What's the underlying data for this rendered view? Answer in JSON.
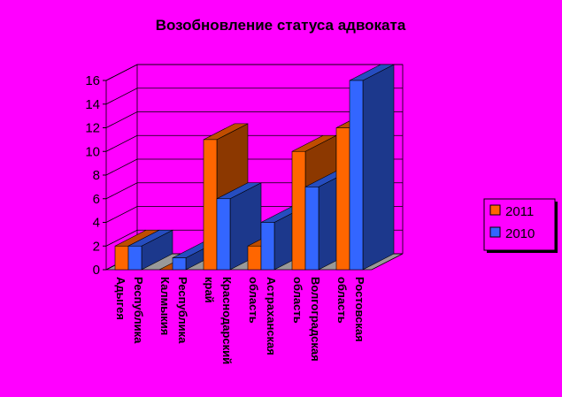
{
  "chart_data": {
    "type": "bar3d",
    "title": "Возобновление статуса адвоката",
    "categories": [
      "Республика Адыгея",
      "Республика Калмыкия",
      "Краснодарский край",
      "Астраханская область",
      "Волгоградская область",
      "Ростовская область"
    ],
    "series": [
      {
        "name": "2011",
        "color": "#ff6600",
        "values": [
          2,
          0,
          11,
          2,
          10,
          12
        ]
      },
      {
        "name": "2010",
        "color": "#3366ff",
        "values": [
          2,
          1,
          6,
          4,
          7,
          16
        ]
      }
    ],
    "ylim": [
      0,
      16
    ],
    "yticks": [
      0,
      2,
      4,
      6,
      8,
      10,
      12,
      14,
      16
    ],
    "grid": true,
    "legend": "right"
  }
}
